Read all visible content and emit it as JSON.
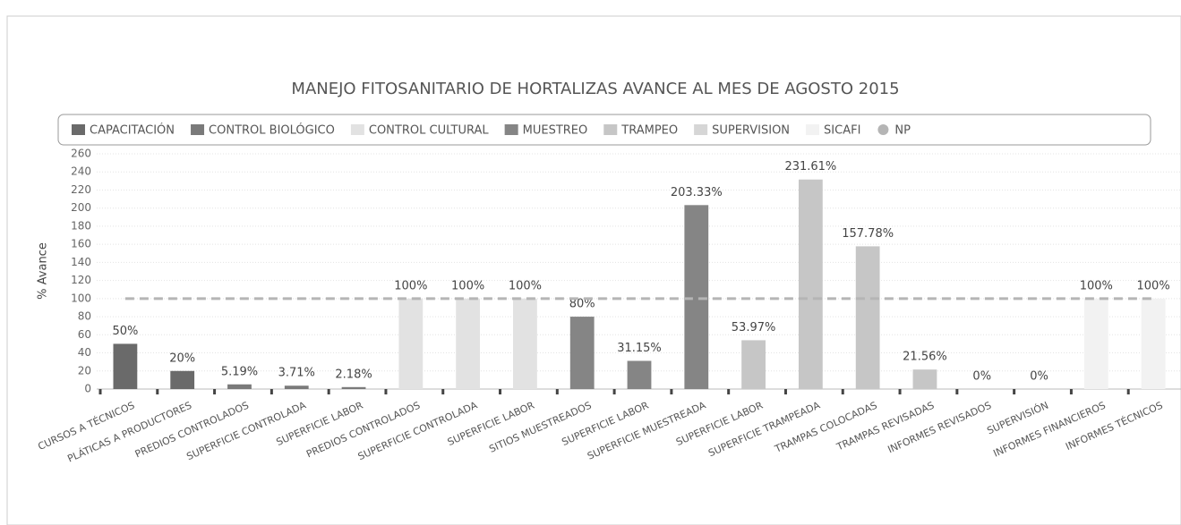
{
  "chart_data": {
    "type": "bar",
    "title": "MANEJO FITOSANITARIO DE HORTALIZAS AVANCE AL MES DE AGOSTO 2015",
    "y_label": "% Avance",
    "categories": [
      "CURSOS A TÉCNICOS",
      "PLÁTICAS A PRODUCTORES",
      "PREDIOS CONTROLADOS",
      "SUPERFICIE CONTROLADA",
      "SUPERFICIE LABOR",
      "PREDIOS CONTROLADOS",
      "SUPERFICIE CONTROLADA",
      "SUPERFICIE LABOR",
      "SITIOS MUESTREADOS",
      "SUPERFICIE LABOR",
      "SUPERFICIE MUESTREADA",
      "SUPERFICIE LABOR",
      "SUPERFICIE TRAMPEADA",
      "TRAMPAS COLOCADAS",
      "TRAMPAS REVISADAS",
      "INFORMES REVISADOS",
      "SUPERVISIÓN",
      "INFORMES FINANCIEROS",
      "INFORMES TÉCNICOS"
    ],
    "series": [
      {
        "name": "CAPACITACIÓN",
        "color": "#6a6a6a",
        "values": [
          50,
          20,
          null,
          null,
          null,
          null,
          null,
          null,
          null,
          null,
          null,
          null,
          null,
          null,
          null,
          null,
          null,
          null,
          null
        ],
        "value_labels": [
          "50%",
          "20%",
          null,
          null,
          null,
          null,
          null,
          null,
          null,
          null,
          null,
          null,
          null,
          null,
          null,
          null,
          null,
          null,
          null
        ]
      },
      {
        "name": "CONTROL BIOLÓGICO",
        "color": "#7a7a7a",
        "values": [
          null,
          null,
          5.19,
          3.71,
          2.18,
          null,
          null,
          null,
          null,
          null,
          null,
          null,
          null,
          null,
          null,
          null,
          null,
          null,
          null
        ],
        "value_labels": [
          null,
          null,
          "5.19%",
          "3.71%",
          "2.18%",
          null,
          null,
          null,
          null,
          null,
          null,
          null,
          null,
          null,
          null,
          null,
          null,
          null,
          null
        ]
      },
      {
        "name": "CONTROL CULTURAL",
        "color": "#e2e2e2",
        "values": [
          null,
          null,
          null,
          null,
          null,
          100,
          100,
          100,
          null,
          null,
          null,
          null,
          null,
          null,
          null,
          null,
          null,
          null,
          null
        ],
        "value_labels": [
          null,
          null,
          null,
          null,
          null,
          "100%",
          "100%",
          "100%",
          null,
          null,
          null,
          null,
          null,
          null,
          null,
          null,
          null,
          null,
          null
        ]
      },
      {
        "name": "MUESTREO",
        "color": "#858585",
        "values": [
          null,
          null,
          null,
          null,
          null,
          null,
          null,
          null,
          80,
          31.15,
          203.33,
          null,
          null,
          null,
          null,
          null,
          null,
          null,
          null
        ],
        "value_labels": [
          null,
          null,
          null,
          null,
          null,
          null,
          null,
          null,
          "80%",
          "31.15%",
          "203.33%",
          null,
          null,
          null,
          null,
          null,
          null,
          null,
          null
        ]
      },
      {
        "name": "TRAMPEO",
        "color": "#c6c6c6",
        "values": [
          null,
          null,
          null,
          null,
          null,
          null,
          null,
          null,
          null,
          null,
          null,
          53.97,
          231.61,
          157.78,
          21.56,
          null,
          null,
          null,
          null
        ],
        "value_labels": [
          null,
          null,
          null,
          null,
          null,
          null,
          null,
          null,
          null,
          null,
          null,
          "53.97%",
          "231.61%",
          "157.78%",
          "21.56%",
          null,
          null,
          null,
          null
        ]
      },
      {
        "name": "SUPERVISION",
        "color": "#d6d6d6",
        "values": [
          null,
          null,
          null,
          null,
          null,
          null,
          null,
          null,
          null,
          null,
          null,
          null,
          null,
          null,
          null,
          0,
          0,
          null,
          null
        ],
        "value_labels": [
          null,
          null,
          null,
          null,
          null,
          null,
          null,
          null,
          null,
          null,
          null,
          null,
          null,
          null,
          null,
          "0%",
          "0%",
          null,
          null
        ]
      },
      {
        "name": "SICAFI",
        "color": "#f2f2f2",
        "values": [
          null,
          null,
          null,
          null,
          null,
          null,
          null,
          null,
          null,
          null,
          null,
          null,
          null,
          null,
          null,
          null,
          null,
          100,
          100
        ],
        "value_labels": [
          null,
          null,
          null,
          null,
          null,
          null,
          null,
          null,
          null,
          null,
          null,
          null,
          null,
          null,
          null,
          null,
          null,
          "100%",
          "100%"
        ]
      },
      {
        "name": "NP",
        "color": "#b5b5b5",
        "type": "line",
        "dashed": true,
        "values": [
          100,
          100,
          100,
          100,
          100,
          100,
          100,
          100,
          100,
          100,
          100,
          100,
          100,
          100,
          100,
          100,
          100,
          100,
          100
        ]
      }
    ],
    "ylim": [
      0,
      260
    ],
    "yticks": [
      0,
      20,
      40,
      60,
      80,
      100,
      120,
      140,
      160,
      180,
      200,
      220,
      240,
      260
    ],
    "grid": true
  }
}
